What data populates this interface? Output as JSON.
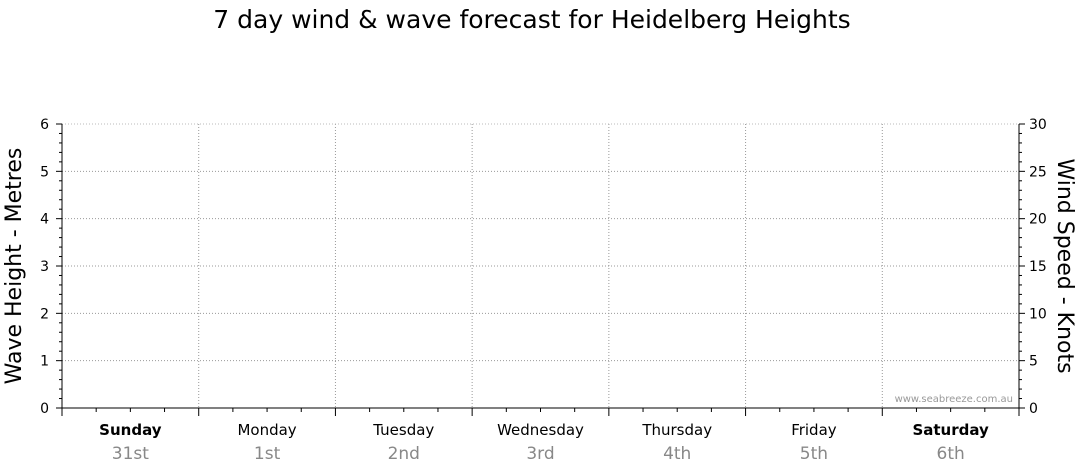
{
  "chart_data": {
    "type": "line",
    "title": "7 day wind & wave forecast for Heidelberg Heights",
    "y_left": {
      "label": "Wave Height - Metres",
      "range": [
        0,
        6
      ],
      "ticks": [
        "0",
        "1",
        "2",
        "3",
        "4",
        "5",
        "6"
      ]
    },
    "y_right": {
      "label": "Wind Speed - Knots",
      "range": [
        0,
        30
      ],
      "ticks": [
        "0",
        "5",
        "10",
        "15",
        "20",
        "25",
        "30"
      ]
    },
    "x": {
      "days": [
        {
          "name": "Sunday",
          "date": "31st",
          "bold": true
        },
        {
          "name": "Monday",
          "date": "1st",
          "bold": false
        },
        {
          "name": "Tuesday",
          "date": "2nd",
          "bold": false
        },
        {
          "name": "Wednesday",
          "date": "3rd",
          "bold": false
        },
        {
          "name": "Thursday",
          "date": "4th",
          "bold": false
        },
        {
          "name": "Friday",
          "date": "5th",
          "bold": false
        },
        {
          "name": "Saturday",
          "date": "6th",
          "bold": true
        }
      ]
    },
    "series": [],
    "grid": true,
    "watermark": "www.seabreeze.com.au"
  }
}
